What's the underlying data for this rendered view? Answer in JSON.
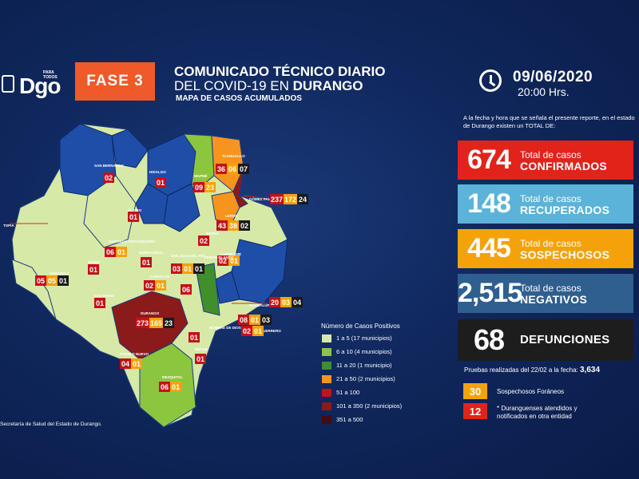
{
  "header": {
    "logo_small": "PARA TODOS",
    "logo_text": "Dgo",
    "phase": "FASE 3",
    "title_line1": "COMUNICADO TÉCNICO DIARIO",
    "title_line2_pre": "DEL COVID-19 EN ",
    "title_line2_bold": "DURANGO",
    "subtitle": "MAPA DE CASOS ACUMULADOS",
    "date": "09/06/2020",
    "time": "20:00 Hrs."
  },
  "intro": "A la fecha y hora que se señala el presente reporte, en el estado de Durango existen un TOTAL DE:",
  "stats": {
    "confirmed": {
      "value": "674",
      "label": "Total de casos",
      "big": "CONFIRMADOS",
      "color": "#e2231a"
    },
    "recovered": {
      "value": "148",
      "label": "Total de casos",
      "big": "RECUPERADOS",
      "color": "#5bb3d9"
    },
    "suspected": {
      "value": "445",
      "label": "Total de casos",
      "big": "SOSPECHOSOS",
      "color": "#f5a20a"
    },
    "negative": {
      "value": "2,515",
      "label": "Total de casos",
      "big": "NEGATIVOS",
      "color": "#2f5f8f"
    },
    "deaths": {
      "value": "68",
      "big": "DEFUNCIONES",
      "color": "#1d1d1d"
    }
  },
  "tests": {
    "label": "Pruebas realizadas del 22/02 a la fecha:",
    "value": "3,634"
  },
  "foreign": {
    "suspected_value": "30",
    "suspected_label": "Sospechosos Foráneos",
    "duranguenses_value": "12",
    "duranguenses_label": "* Duranguenses atendidos y notificados en otra entidad"
  },
  "legend": {
    "title": "Número de Casos Positivos",
    "items": [
      {
        "label": "1 a 5   (17 municipios)",
        "color": "#d6e9a6"
      },
      {
        "label": "6 a 10   (4 municipios)",
        "color": "#8cc63f"
      },
      {
        "label": "11 a 20   (1 municipio)",
        "color": "#3f8f2a"
      },
      {
        "label": "21 a 50   (2 municipios)",
        "color": "#f7941d"
      },
      {
        "label": "51 a 100",
        "color": "#c4121a"
      },
      {
        "label": "101 a 350   (2 municipios)",
        "color": "#8b1a1a"
      },
      {
        "label": "351 a 500",
        "color": "#4a0a0a"
      }
    ]
  },
  "source": "Secretaría de Salud del Estado de Durango.",
  "map": {
    "municipalities": [
      {
        "name": "SAN BERNARDO",
        "counts": [
          "02"
        ]
      },
      {
        "name": "HIDALGO",
        "counts": [
          "01"
        ]
      },
      {
        "name": "MAPIMÍ",
        "counts": [
          "09",
          "23"
        ]
      },
      {
        "name": "TLAHUALILO",
        "counts": [
          "36",
          "06",
          "07"
        ]
      },
      {
        "name": "GÓMEZ PALACIO",
        "counts": [
          "237",
          "172",
          "24"
        ]
      },
      {
        "name": "LERDO",
        "counts": [
          "43",
          "38",
          "02"
        ]
      },
      {
        "name": "EL ORO",
        "counts": [
          "01"
        ]
      },
      {
        "name": "MAPAS",
        "counts": [
          "02"
        ]
      },
      {
        "name": "TOPIA",
        "counts": [
          ""
        ]
      },
      {
        "name": "SANTIAGO PAPASQUIARO",
        "counts": [
          "06",
          "01"
        ]
      },
      {
        "name": "NUEVO IDEAL",
        "counts": [
          "01"
        ]
      },
      {
        "name": "OTAEZ",
        "counts": [
          "01"
        ]
      },
      {
        "name": "SAN JUAN DEL RÍO",
        "counts": [
          "03",
          "01",
          "01"
        ]
      },
      {
        "name": "CUENCAMÉ",
        "counts": [
          "02",
          "01"
        ]
      },
      {
        "name": "TAMAZULA",
        "counts": [
          "05",
          "05",
          "01"
        ]
      },
      {
        "name": "CANATLÁN",
        "counts": [
          "02",
          "01"
        ]
      },
      {
        "name": "PEÑÓN BLANCO",
        "counts": [
          "06"
        ]
      },
      {
        "name": "SAN DIMAS",
        "counts": [
          "01"
        ]
      },
      {
        "name": "GUADALUPE VICTORIA",
        "counts": [
          "20",
          "03",
          "04"
        ]
      },
      {
        "name": "DURANGO",
        "counts": [
          "273",
          "165",
          "23"
        ]
      },
      {
        "name": "POANAS",
        "counts": [
          "08",
          "01",
          "03"
        ]
      },
      {
        "name": "VICENTE GUERRERO",
        "counts": [
          "02",
          "01"
        ]
      },
      {
        "name": "NOMBRE DE DIOS",
        "counts": [
          "01"
        ]
      },
      {
        "name": "SÚCHIL",
        "counts": [
          "01"
        ]
      },
      {
        "name": "PUEBLO NUEVO",
        "counts": [
          "04",
          "01"
        ]
      },
      {
        "name": "MEZQUITAL",
        "counts": [
          "06",
          "01"
        ]
      }
    ]
  }
}
